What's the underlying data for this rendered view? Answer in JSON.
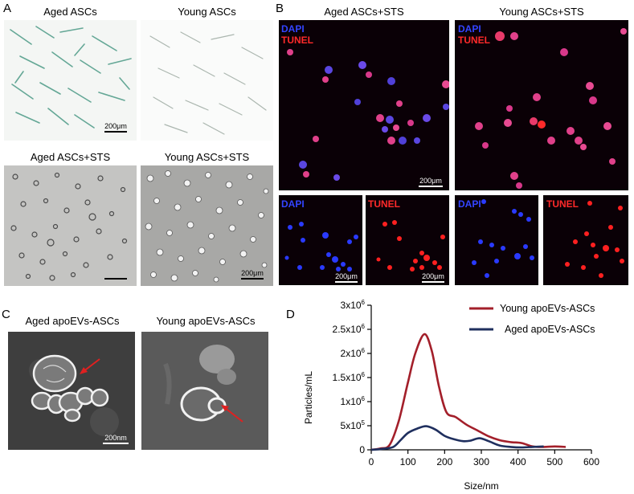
{
  "panels": {
    "A": {
      "letter": "A",
      "images": [
        {
          "caption": "Aged ASCs",
          "scale": "200μm"
        },
        {
          "caption": "Young ASCs",
          "scale": ""
        },
        {
          "caption": "Aged ASCs+STS",
          "scale": ""
        },
        {
          "caption": "Young ASCs+STS",
          "scale": "200μm"
        }
      ]
    },
    "B": {
      "letter": "B",
      "captions": [
        "Aged ASCs+STS",
        "Young ASCs+STS"
      ],
      "stain_dapi": "DAPI",
      "stain_tunel": "TUNEL",
      "scale": "200μm",
      "colors": {
        "dapi": "#3344ff",
        "tunel": "#ff2a2a",
        "merge": "#e0408a"
      }
    },
    "C": {
      "letter": "C",
      "captions": [
        "Aged apoEVs-ASCs",
        "Young apoEVs-ASCs"
      ],
      "scale": "200nm",
      "arrow_color": "#e02020"
    },
    "D": {
      "letter": "D"
    }
  },
  "chart_data": {
    "type": "line",
    "xlabel": "Size/nm",
    "ylabel": "Particles/mL",
    "xlim": [
      0,
      600
    ],
    "ylim": [
      0,
      3000000
    ],
    "xticks": [
      0,
      100,
      200,
      300,
      400,
      500,
      600
    ],
    "yticks": [
      0,
      500000,
      1000000,
      1500000,
      2000000,
      2500000,
      3000000
    ],
    "ytick_labels": [
      {
        "mant": "0",
        "exp": ""
      },
      {
        "mant": "5x10",
        "exp": "5"
      },
      {
        "mant": "1x10",
        "exp": "6"
      },
      {
        "mant": "1.5x10",
        "exp": "6"
      },
      {
        "mant": "2x10",
        "exp": "6"
      },
      {
        "mant": "2.5x10",
        "exp": "6"
      },
      {
        "mant": "3x10",
        "exp": "6"
      }
    ],
    "legend": "top-right",
    "series": [
      {
        "name": "Young apoEVs-ASCs",
        "color": "#a31f2a",
        "points": [
          [
            0,
            0
          ],
          [
            25,
            30000
          ],
          [
            50,
            100000
          ],
          [
            75,
            600000
          ],
          [
            100,
            1400000
          ],
          [
            120,
            2000000
          ],
          [
            145,
            2400000
          ],
          [
            165,
            2050000
          ],
          [
            185,
            1300000
          ],
          [
            205,
            780000
          ],
          [
            230,
            680000
          ],
          [
            260,
            520000
          ],
          [
            290,
            400000
          ],
          [
            320,
            280000
          ],
          [
            350,
            200000
          ],
          [
            380,
            160000
          ],
          [
            410,
            140000
          ],
          [
            440,
            70000
          ],
          [
            470,
            60000
          ],
          [
            500,
            70000
          ],
          [
            530,
            60000
          ]
        ]
      },
      {
        "name": "Aged apoEVs-ASCs",
        "color": "#1f2f5e",
        "points": [
          [
            0,
            0
          ],
          [
            30,
            20000
          ],
          [
            60,
            60000
          ],
          [
            80,
            200000
          ],
          [
            100,
            350000
          ],
          [
            125,
            440000
          ],
          [
            150,
            490000
          ],
          [
            175,
            420000
          ],
          [
            200,
            290000
          ],
          [
            225,
            220000
          ],
          [
            250,
            180000
          ],
          [
            270,
            190000
          ],
          [
            295,
            240000
          ],
          [
            320,
            180000
          ],
          [
            350,
            90000
          ],
          [
            380,
            60000
          ],
          [
            410,
            50000
          ],
          [
            440,
            60000
          ],
          [
            470,
            70000
          ]
        ]
      }
    ]
  }
}
